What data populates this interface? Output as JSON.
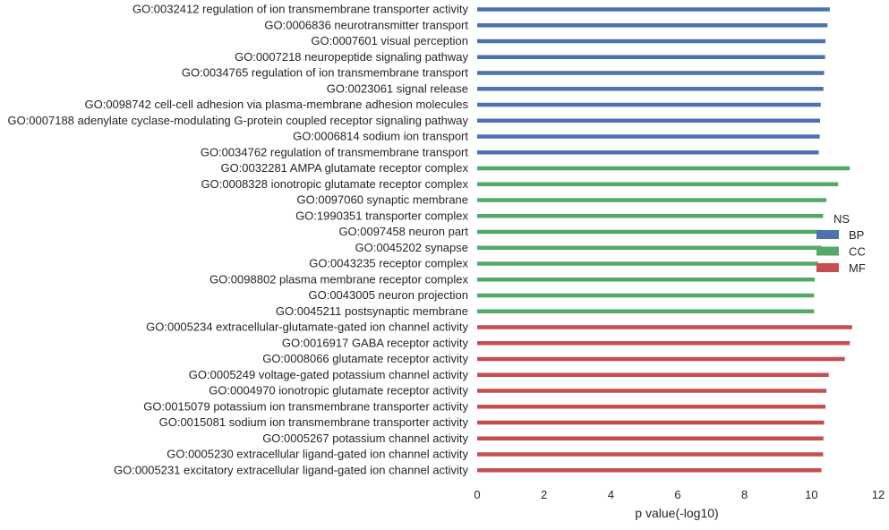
{
  "chart_data": {
    "type": "bar",
    "orientation": "horizontal",
    "title": "",
    "xlabel": "p value(-log10)",
    "ylabel": "",
    "xlim": [
      0,
      12
    ],
    "xticks": [
      0,
      2,
      4,
      6,
      8,
      10,
      12
    ],
    "grid": false,
    "legend": {
      "title": "NS",
      "placement": "right",
      "entries": [
        {
          "label": "BP",
          "color": "#4c72b0"
        },
        {
          "label": "CC",
          "color": "#55a868"
        },
        {
          "label": "MF",
          "color": "#c44e52"
        }
      ]
    },
    "series": [
      {
        "name": "BP",
        "color": "#4c72b0",
        "categories": [
          "GO:0032412 regulation of ion transmembrane transporter activity",
          "GO:0006836 neurotransmitter transport",
          "GO:0007601 visual perception",
          "GO:0007218 neuropeptide signaling pathway",
          "GO:0034765 regulation of ion transmembrane transport",
          "GO:0023061 signal release",
          "GO:0098742 cell-cell adhesion via plasma-membrane adhesion molecules",
          "GO:0007188 adenylate cyclase-modulating G-protein coupled receptor signaling pathway",
          "GO:0006814 sodium ion transport",
          "GO:0034762 regulation of transmembrane transport"
        ],
        "values": [
          10.55,
          10.48,
          10.42,
          10.41,
          10.38,
          10.36,
          10.28,
          10.26,
          10.25,
          10.22
        ]
      },
      {
        "name": "CC",
        "color": "#55a868",
        "categories": [
          "GO:0032281 AMPA glutamate receptor complex",
          "GO:0008328 ionotropic glutamate receptor complex",
          "GO:0097060 synaptic membrane",
          "GO:1990351 transporter complex",
          "GO:0097458 neuron part",
          "GO:0045202 synapse",
          "GO:0043235 receptor complex",
          "GO:0098802 plasma membrane receptor complex",
          "GO:0043005 neuron projection",
          "GO:0045211 postsynaptic membrane"
        ],
        "values": [
          11.15,
          10.8,
          10.45,
          10.35,
          10.33,
          10.3,
          10.2,
          10.1,
          10.08,
          10.08
        ]
      },
      {
        "name": "MF",
        "color": "#c44e52",
        "categories": [
          "GO:0005234 extracellular-glutamate-gated ion channel activity",
          "GO:0016917 GABA receptor activity",
          "GO:0008066 glutamate receptor activity",
          "GO:0005249 voltage-gated potassium channel activity",
          "GO:0004970 ionotropic glutamate receptor activity",
          "GO:0015079 potassium ion transmembrane transporter activity",
          "GO:0015081 sodium ion transmembrane transporter activity",
          "GO:0005267 potassium channel activity",
          "GO:0005230 extracellular ligand-gated ion channel activity",
          "GO:0005231 excitatory extracellular ligand-gated ion channel activity"
        ],
        "values": [
          11.22,
          11.15,
          11.0,
          10.52,
          10.45,
          10.42,
          10.38,
          10.36,
          10.35,
          10.3
        ]
      }
    ]
  }
}
